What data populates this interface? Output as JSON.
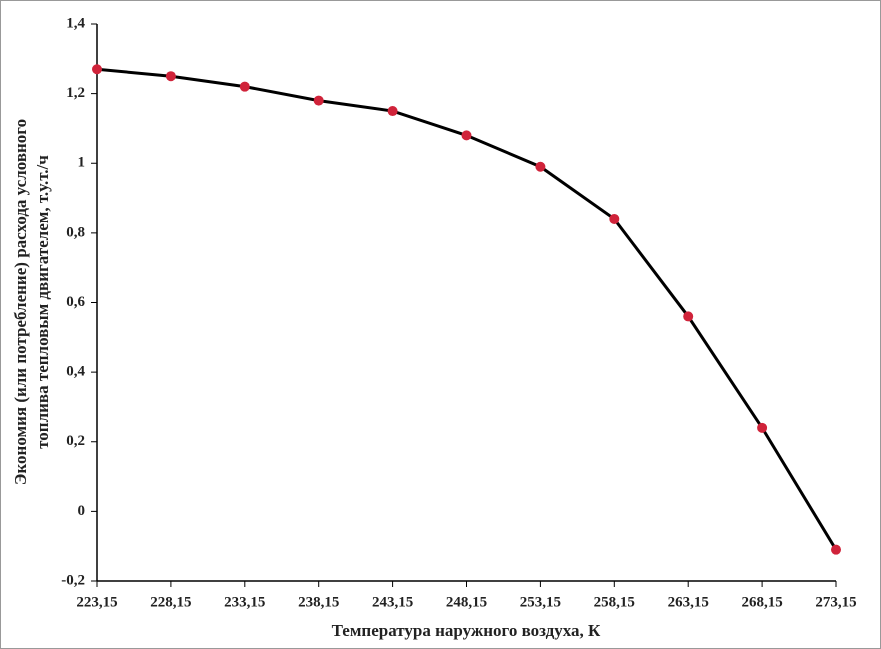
{
  "chart_data": {
    "type": "line",
    "xlabel": "Температура наружного воздуха, К",
    "ylabel": [
      "Экономия (или потребление) расхода условного",
      "топлива  тепловым двигателем, т.у.т./ч"
    ],
    "categories": [
      "223,15",
      "228,15",
      "233,15",
      "238,15",
      "243,15",
      "248,15",
      "253,15",
      "258,15",
      "263,15",
      "268,15",
      "273,15"
    ],
    "series": [
      {
        "color": "#000000",
        "marker_color": "#d0233a",
        "values": [
          1.27,
          1.25,
          1.22,
          1.18,
          1.15,
          1.08,
          0.99,
          0.84,
          0.56,
          0.24,
          -0.11
        ]
      }
    ],
    "ylim": [
      -0.2,
      1.4
    ],
    "yticks": [
      {
        "value": -0.2,
        "label": "-0,2"
      },
      0,
      {
        "value": 0.2,
        "label": "0,2"
      },
      {
        "value": 0.4,
        "label": "0,4"
      },
      {
        "value": 0.6,
        "label": "0,6"
      },
      {
        "value": 0.8,
        "label": "0,8"
      },
      1,
      {
        "value": 1.2,
        "label": "1,2"
      },
      {
        "value": 1.4,
        "label": "1,4"
      }
    ],
    "grid": false
  }
}
